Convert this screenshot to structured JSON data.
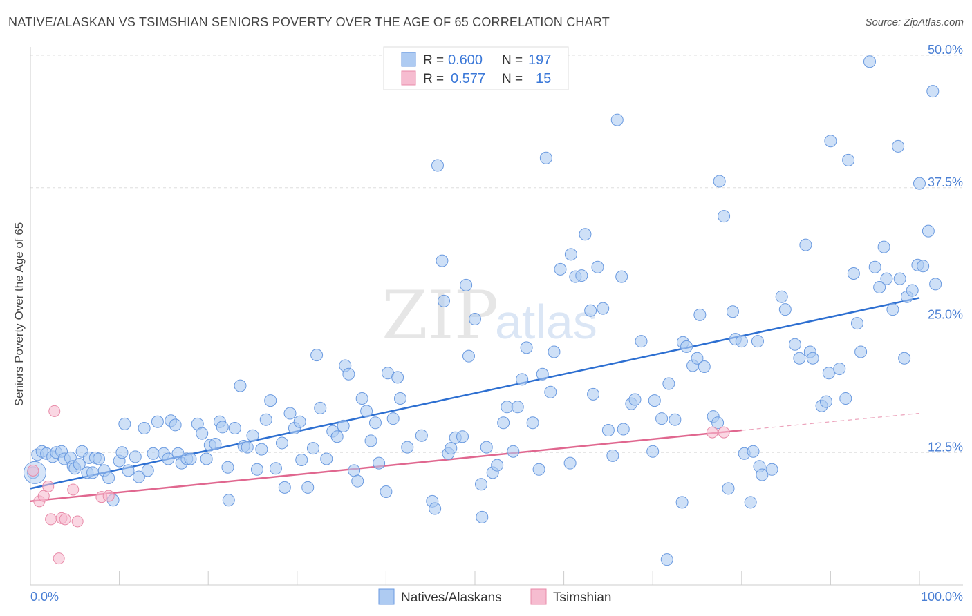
{
  "title": "NATIVE/ALASKAN VS TSIMSHIAN SENIORS POVERTY OVER THE AGE OF 65 CORRELATION CHART",
  "source": "Source: ZipAtlas.com",
  "watermark": {
    "zip": "ZIP",
    "atlas": "atlas"
  },
  "colors": {
    "blue_fill": "#aecbf2",
    "blue_stroke": "#6a9ae0",
    "blue_line": "#2d6fd1",
    "pink_fill": "#f6bcd0",
    "pink_stroke": "#e88aa8",
    "pink_line": "#e0678f",
    "axis_label": "#4a7fd4",
    "grid": "#dddddd"
  },
  "legend": {
    "rows": [
      {
        "r_label": "R =",
        "r_value": "0.600",
        "n_label": "N =",
        "n_value": "197",
        "series": "blue"
      },
      {
        "r_label": "R =",
        "r_value": "0.577",
        "n_label": "N =",
        "n_value": "15",
        "series": "pink"
      }
    ]
  },
  "bottom_legend": [
    {
      "label": "Natives/Alaskans",
      "series": "blue"
    },
    {
      "label": "Tsimshian",
      "series": "pink"
    }
  ],
  "chart_data": {
    "type": "scatter",
    "title": "NATIVE/ALASKAN VS TSIMSHIAN SENIORS POVERTY OVER THE AGE OF 65 CORRELATION CHART",
    "xlabel": "",
    "ylabel": "Seniors Poverty Over the Age of 65",
    "xlim": [
      0,
      100
    ],
    "ylim": [
      0,
      50
    ],
    "x_tick_labels": [
      "0.0%",
      "100.0%"
    ],
    "y_ticks": [
      12.5,
      25.0,
      37.5,
      50.0
    ],
    "y_tick_labels": [
      "12.5%",
      "25.0%",
      "37.5%",
      "50.0%"
    ],
    "series": [
      {
        "name": "Natives/Alaskans",
        "color": "blue",
        "trendline": {
          "x": [
            0,
            100
          ],
          "y": [
            9.1,
            27.1
          ]
        },
        "points": [
          [
            0.3,
            10.6
          ],
          [
            0.8,
            12.3
          ],
          [
            1.3,
            12.6
          ],
          [
            1.8,
            12.4
          ],
          [
            2.5,
            12.1
          ],
          [
            2.9,
            12.5
          ],
          [
            3.5,
            12.6
          ],
          [
            3.8,
            11.9
          ],
          [
            4.5,
            12.0
          ],
          [
            4.8,
            11.2
          ],
          [
            5.0,
            11.0
          ],
          [
            5.5,
            11.4
          ],
          [
            5.8,
            12.6
          ],
          [
            6.4,
            10.6
          ],
          [
            6.6,
            12.0
          ],
          [
            7.0,
            10.6
          ],
          [
            7.3,
            12.0
          ],
          [
            7.7,
            11.9
          ],
          [
            8.3,
            10.8
          ],
          [
            8.8,
            10.1
          ],
          [
            9.3,
            8.0
          ],
          [
            10.0,
            11.7
          ],
          [
            10.3,
            12.5
          ],
          [
            10.6,
            15.2
          ],
          [
            11.0,
            10.8
          ],
          [
            11.8,
            12.1
          ],
          [
            12.2,
            10.2
          ],
          [
            12.8,
            14.8
          ],
          [
            13.2,
            10.8
          ],
          [
            13.8,
            12.4
          ],
          [
            14.3,
            15.4
          ],
          [
            15.0,
            12.4
          ],
          [
            15.5,
            11.9
          ],
          [
            15.8,
            15.5
          ],
          [
            16.3,
            15.1
          ],
          [
            16.6,
            12.4
          ],
          [
            17.0,
            11.5
          ],
          [
            17.6,
            11.9
          ],
          [
            18.0,
            11.9
          ],
          [
            18.8,
            15.2
          ],
          [
            19.3,
            14.3
          ],
          [
            19.8,
            11.9
          ],
          [
            20.2,
            13.2
          ],
          [
            20.8,
            13.3
          ],
          [
            21.3,
            15.4
          ],
          [
            21.6,
            14.9
          ],
          [
            22.2,
            11.1
          ],
          [
            22.3,
            8.0
          ],
          [
            23.0,
            14.8
          ],
          [
            23.6,
            18.8
          ],
          [
            24.0,
            13.1
          ],
          [
            24.4,
            13.0
          ],
          [
            25.0,
            14.1
          ],
          [
            25.5,
            10.9
          ],
          [
            26.0,
            12.8
          ],
          [
            26.5,
            15.6
          ],
          [
            27.0,
            17.4
          ],
          [
            27.6,
            11.0
          ],
          [
            28.3,
            13.4
          ],
          [
            28.6,
            9.2
          ],
          [
            29.2,
            16.2
          ],
          [
            29.7,
            14.8
          ],
          [
            30.3,
            15.4
          ],
          [
            30.5,
            11.8
          ],
          [
            31.2,
            9.2
          ],
          [
            31.8,
            12.9
          ],
          [
            32.2,
            21.7
          ],
          [
            32.6,
            16.7
          ],
          [
            33.3,
            11.9
          ],
          [
            34.0,
            14.5
          ],
          [
            34.5,
            14.0
          ],
          [
            35.2,
            15.0
          ],
          [
            35.4,
            20.7
          ],
          [
            35.8,
            19.9
          ],
          [
            36.4,
            10.8
          ],
          [
            36.8,
            9.8
          ],
          [
            37.3,
            17.6
          ],
          [
            37.8,
            16.4
          ],
          [
            38.3,
            13.6
          ],
          [
            38.8,
            15.3
          ],
          [
            39.2,
            11.5
          ],
          [
            40.0,
            8.8
          ],
          [
            40.2,
            20.0
          ],
          [
            40.8,
            15.7
          ],
          [
            41.3,
            19.6
          ],
          [
            41.6,
            17.6
          ],
          [
            42.4,
            13.0
          ],
          [
            44.0,
            14.1
          ],
          [
            45.2,
            7.9
          ],
          [
            45.5,
            7.2
          ],
          [
            45.8,
            39.6
          ],
          [
            46.3,
            30.6
          ],
          [
            46.5,
            26.8
          ],
          [
            47.0,
            12.4
          ],
          [
            47.3,
            12.9
          ],
          [
            47.8,
            13.9
          ],
          [
            48.6,
            14.0
          ],
          [
            49.0,
            28.3
          ],
          [
            49.3,
            21.6
          ],
          [
            50.0,
            25.1
          ],
          [
            50.7,
            9.5
          ],
          [
            50.8,
            6.4
          ],
          [
            51.3,
            13.0
          ],
          [
            52.0,
            10.6
          ],
          [
            52.5,
            11.3
          ],
          [
            53.2,
            15.3
          ],
          [
            53.6,
            16.8
          ],
          [
            54.3,
            12.6
          ],
          [
            54.8,
            16.8
          ],
          [
            55.3,
            19.4
          ],
          [
            55.8,
            22.4
          ],
          [
            56.5,
            15.3
          ],
          [
            57.2,
            10.9
          ],
          [
            57.6,
            19.9
          ],
          [
            58.0,
            40.3
          ],
          [
            58.5,
            18.2
          ],
          [
            58.9,
            22.0
          ],
          [
            59.6,
            29.8
          ],
          [
            60.7,
            11.5
          ],
          [
            60.8,
            31.2
          ],
          [
            61.3,
            29.1
          ],
          [
            62.0,
            29.2
          ],
          [
            62.4,
            33.1
          ],
          [
            63.0,
            25.9
          ],
          [
            63.3,
            18.0
          ],
          [
            63.8,
            30.0
          ],
          [
            64.4,
            26.1
          ],
          [
            65.0,
            14.6
          ],
          [
            65.5,
            12.2
          ],
          [
            66.0,
            43.9
          ],
          [
            66.5,
            29.1
          ],
          [
            66.7,
            14.7
          ],
          [
            67.6,
            17.1
          ],
          [
            68.0,
            17.5
          ],
          [
            68.7,
            23.0
          ],
          [
            70.0,
            12.6
          ],
          [
            70.2,
            17.4
          ],
          [
            71.0,
            15.7
          ],
          [
            71.6,
            2.4
          ],
          [
            71.8,
            19.0
          ],
          [
            72.5,
            15.6
          ],
          [
            73.3,
            7.8
          ],
          [
            73.4,
            22.9
          ],
          [
            73.8,
            22.5
          ],
          [
            74.5,
            20.7
          ],
          [
            75.0,
            21.4
          ],
          [
            75.3,
            25.5
          ],
          [
            75.8,
            20.6
          ],
          [
            76.8,
            15.9
          ],
          [
            77.3,
            15.3
          ],
          [
            77.5,
            38.1
          ],
          [
            78.0,
            34.8
          ],
          [
            78.5,
            9.1
          ],
          [
            79.0,
            25.8
          ],
          [
            79.3,
            23.2
          ],
          [
            80.0,
            23.0
          ],
          [
            80.3,
            12.4
          ],
          [
            81.0,
            7.8
          ],
          [
            81.3,
            12.6
          ],
          [
            81.8,
            23.0
          ],
          [
            82.0,
            11.2
          ],
          [
            82.3,
            10.4
          ],
          [
            83.4,
            10.9
          ],
          [
            84.5,
            27.2
          ],
          [
            84.9,
            26.0
          ],
          [
            86.0,
            22.7
          ],
          [
            86.5,
            21.4
          ],
          [
            87.2,
            32.1
          ],
          [
            87.7,
            22.0
          ],
          [
            88.0,
            21.4
          ],
          [
            89.0,
            16.9
          ],
          [
            89.5,
            17.3
          ],
          [
            89.8,
            20.0
          ],
          [
            90.0,
            41.9
          ],
          [
            91.0,
            20.4
          ],
          [
            91.7,
            17.6
          ],
          [
            92.0,
            40.1
          ],
          [
            92.6,
            29.4
          ],
          [
            93.0,
            24.7
          ],
          [
            93.4,
            22.0
          ],
          [
            94.4,
            49.4
          ],
          [
            95.0,
            30.0
          ],
          [
            95.5,
            28.1
          ],
          [
            96.0,
            31.9
          ],
          [
            96.3,
            28.9
          ],
          [
            97.0,
            26.0
          ],
          [
            97.8,
            28.9
          ],
          [
            97.6,
            41.4
          ],
          [
            98.3,
            21.4
          ],
          [
            98.6,
            27.2
          ],
          [
            99.2,
            27.8
          ],
          [
            99.8,
            30.2
          ],
          [
            100.0,
            37.9
          ],
          [
            100.4,
            30.1
          ],
          [
            101.0,
            33.4
          ],
          [
            101.5,
            46.6
          ],
          [
            101.8,
            28.4
          ]
        ]
      },
      {
        "name": "Tsimshian",
        "color": "pink",
        "trendline": {
          "x": [
            0,
            80
          ],
          "y": [
            7.9,
            14.6
          ],
          "dashed_extension": {
            "x": [
              80,
              100
            ],
            "y": [
              14.6,
              16.2
            ]
          }
        },
        "points": [
          [
            0.3,
            10.8
          ],
          [
            1.0,
            7.9
          ],
          [
            1.5,
            8.4
          ],
          [
            2.0,
            9.3
          ],
          [
            2.3,
            6.2
          ],
          [
            2.7,
            16.4
          ],
          [
            3.2,
            2.5
          ],
          [
            3.5,
            6.3
          ],
          [
            3.9,
            6.2
          ],
          [
            4.8,
            9.0
          ],
          [
            5.3,
            6.0
          ],
          [
            8.0,
            8.3
          ],
          [
            8.8,
            8.4
          ],
          [
            76.7,
            14.4
          ],
          [
            78.0,
            14.4
          ]
        ]
      }
    ]
  }
}
